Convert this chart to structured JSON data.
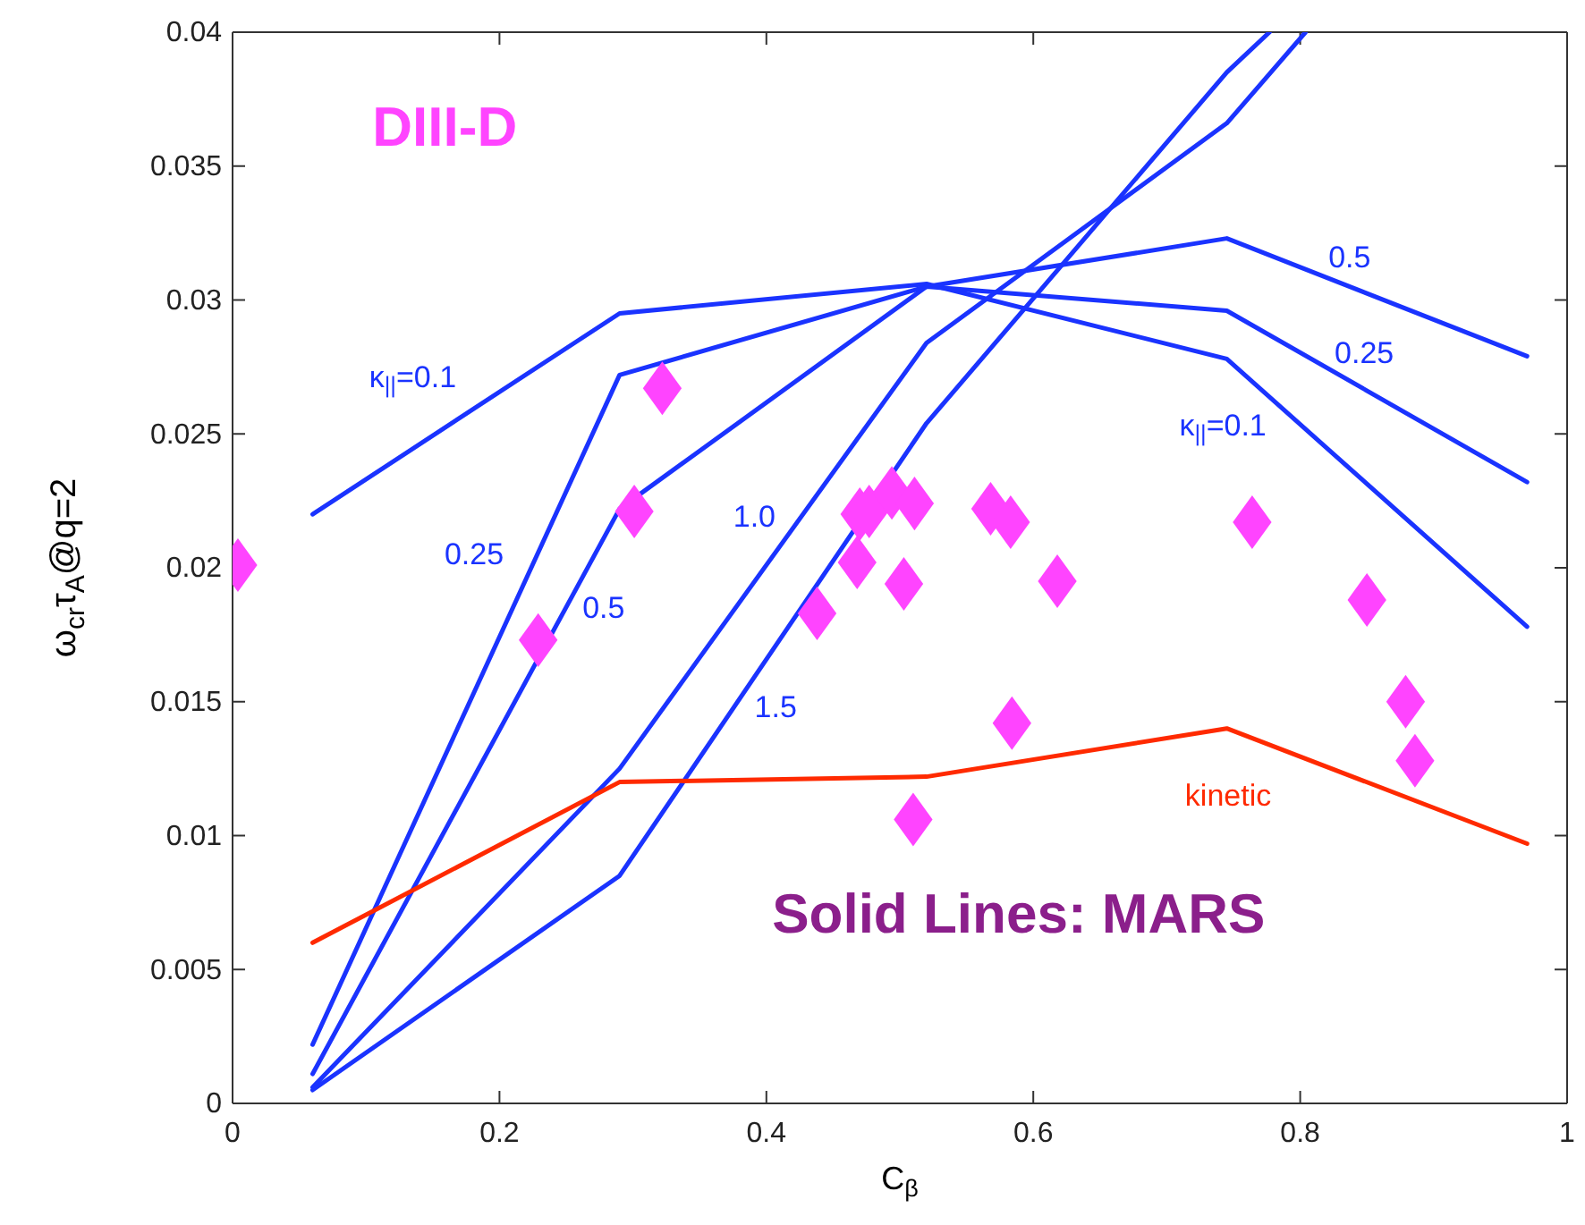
{
  "chart_data": {
    "type": "line",
    "title": "DIII-D",
    "subtitle": "Solid Lines: MARS",
    "xlabel": "C$_{β}$",
    "ylabel": "ω$_{cr}$τ$_{A}$@q=2",
    "xlim": [
      0,
      1
    ],
    "xticks": [
      0,
      0.2,
      0.4,
      0.6,
      0.8,
      1
    ],
    "ylim": [
      0,
      0.04
    ],
    "yticks": [
      0,
      0.005,
      0.01,
      0.015,
      0.02,
      0.025,
      0.03,
      0.035,
      0.04
    ],
    "grid": false,
    "series": [
      {
        "name": "κ$_{||}$=0.1",
        "color": "#1a33ff",
        "marker": "none",
        "line_style": "solid",
        "x": [
          0.06,
          0.29,
          0.52,
          0.745,
          0.97
        ],
        "values": [
          0.022,
          0.0295,
          0.0306,
          0.0278,
          0.0178
        ]
      },
      {
        "name": "0.25",
        "color": "#1a33ff",
        "marker": "none",
        "line_style": "solid",
        "x": [
          0.06,
          0.29,
          0.52,
          0.745,
          0.97
        ],
        "values": [
          0.0022,
          0.0272,
          0.0305,
          0.0296,
          0.0232
        ]
      },
      {
        "name": "0.5",
        "color": "#1a33ff",
        "marker": "none",
        "line_style": "solid",
        "x": [
          0.06,
          0.29,
          0.52,
          0.745,
          0.97
        ],
        "values": [
          0.0011,
          0.0222,
          0.0305,
          0.0323,
          0.0279
        ]
      },
      {
        "name": "1.0",
        "color": "#1a33ff",
        "marker": "none",
        "line_style": "solid",
        "x": [
          0.06,
          0.29,
          0.52,
          0.745,
          0.804
        ],
        "values": [
          0.0006,
          0.0125,
          0.0284,
          0.0366,
          0.04
        ]
      },
      {
        "name": "1.5",
        "color": "#1a33ff",
        "marker": "none",
        "line_style": "solid",
        "x": [
          0.06,
          0.29,
          0.52,
          0.745,
          0.777
        ],
        "values": [
          0.0005,
          0.0085,
          0.0254,
          0.0385,
          0.04
        ]
      },
      {
        "name": "kinetic",
        "color": "#ff2a00",
        "marker": "none",
        "line_style": "solid",
        "x": [
          0.06,
          0.29,
          0.52,
          0.745,
          0.97
        ],
        "values": [
          0.006,
          0.012,
          0.0122,
          0.014,
          0.0097
        ]
      },
      {
        "type": "scatter",
        "color": "#ff44ff",
        "marker": "diamond",
        "x": [
          0.004,
          0.229,
          0.301,
          0.322,
          0.438,
          0.468,
          0.47,
          0.477,
          0.494,
          0.503,
          0.511,
          0.51,
          0.568,
          0.583,
          0.584,
          0.618,
          0.764,
          0.85,
          0.879,
          0.886
        ],
        "values": [
          0.0201,
          0.0173,
          0.0221,
          0.0267,
          0.0183,
          0.0202,
          0.022,
          0.0221,
          0.0228,
          0.0194,
          0.0224,
          0.0106,
          0.0222,
          0.0217,
          0.0142,
          0.0195,
          0.0217,
          0.0188,
          0.015,
          0.0128
        ]
      }
    ]
  }
}
